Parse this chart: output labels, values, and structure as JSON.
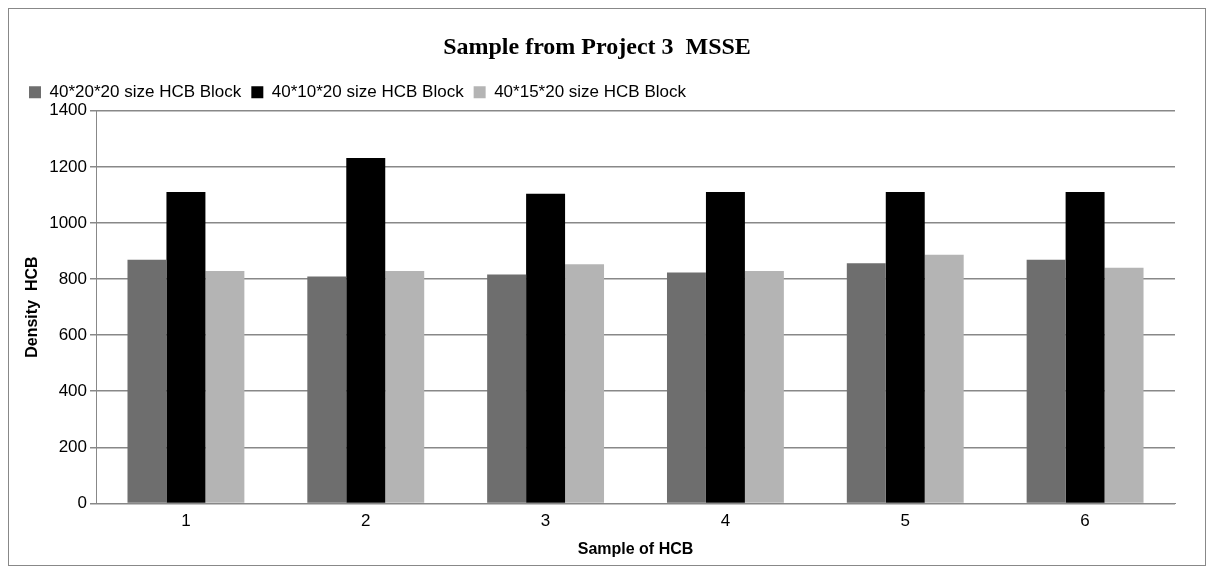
{
  "chart_data": {
    "type": "bar",
    "title": "Sample from Project 3  MSSE",
    "xlabel": "Sample of HCB",
    "ylabel": "Density  HCB",
    "categories": [
      "1",
      "2",
      "3",
      "4",
      "5",
      "6"
    ],
    "series": [
      {
        "name": "40*20*20 size HCB Block",
        "color": "#6e6e6e",
        "values": [
          869,
          809,
          816,
          823,
          856,
          869
        ]
      },
      {
        "name": "40*10*20 size HCB Block",
        "color": "#000000",
        "values": [
          1110,
          1232,
          1104,
          1110,
          1110,
          1110
        ]
      },
      {
        "name": "40*15*20 size HCB Block",
        "color": "#b4b4b4",
        "values": [
          829,
          829,
          853,
          829,
          887,
          840
        ]
      }
    ],
    "ylim": [
      0,
      1400
    ],
    "yticks": [
      0,
      200,
      400,
      600,
      800,
      1000,
      1200,
      1400
    ],
    "grid": "y",
    "legend": "top"
  }
}
